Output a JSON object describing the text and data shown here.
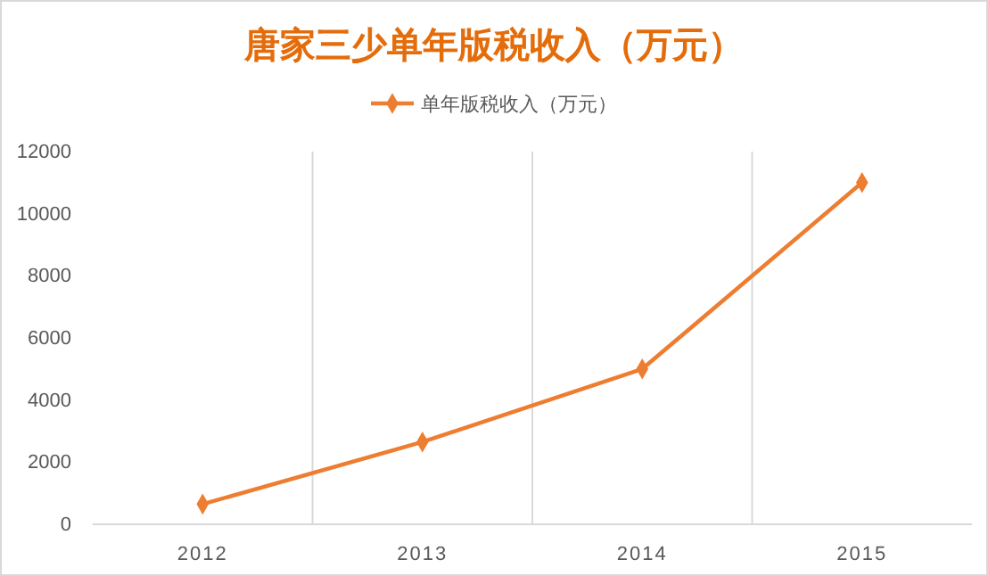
{
  "chart_data": {
    "type": "line",
    "title": "唐家三少单年版税收入（万元）",
    "categories": [
      "2012",
      "2013",
      "2014",
      "2015"
    ],
    "series": [
      {
        "name": "单年版税收入（万元）",
        "color": "#ed7d31",
        "values": [
          650,
          2650,
          5000,
          11000
        ]
      }
    ],
    "ylim": [
      0,
      12000
    ],
    "yticks": [
      0,
      2000,
      4000,
      6000,
      8000,
      10000,
      12000
    ],
    "grid": "x",
    "legend": "top",
    "marker": "diamond",
    "line_style": "solid"
  }
}
